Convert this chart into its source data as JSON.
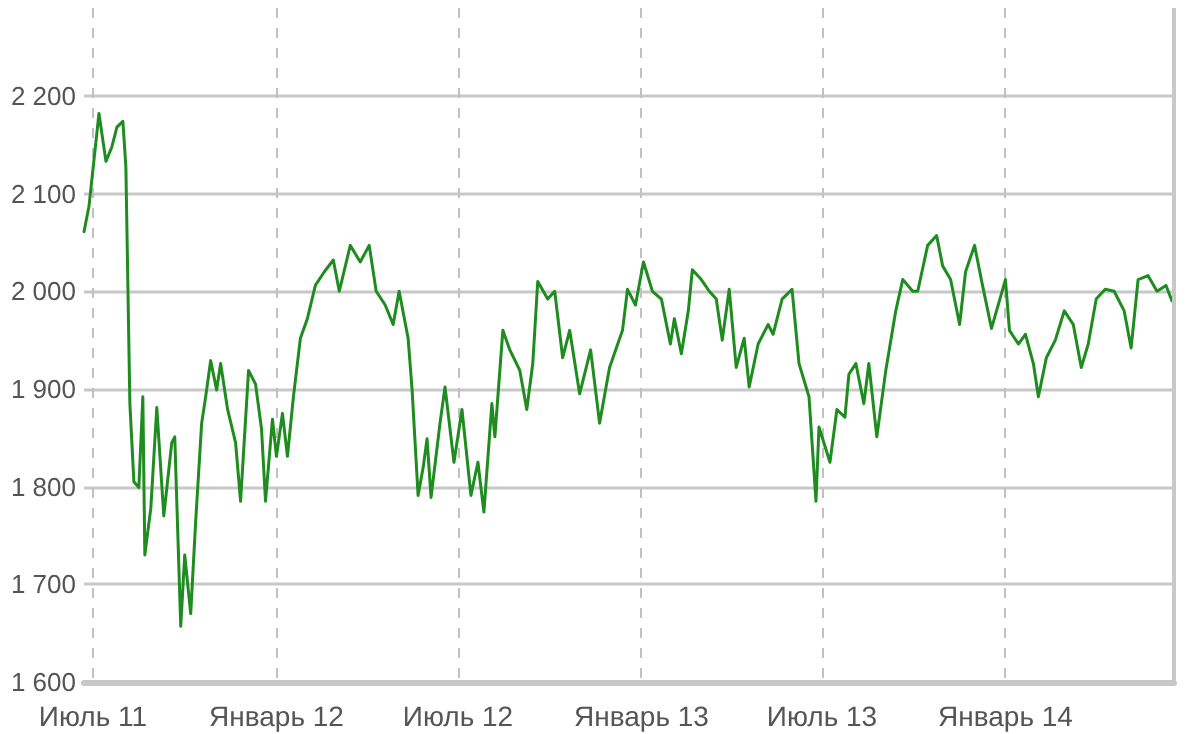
{
  "chart_data": {
    "type": "line",
    "x": [
      "2011-06-22",
      "2011-06-27",
      "2011-07-07",
      "2011-07-14",
      "2011-07-20",
      "2011-07-25",
      "2011-07-31",
      "2011-08-03",
      "2011-08-07",
      "2011-08-11",
      "2011-08-16",
      "2011-08-20",
      "2011-08-22",
      "2011-08-28",
      "2011-09-03",
      "2011-09-10",
      "2011-09-18",
      "2011-09-21",
      "2011-09-27",
      "2011-10-01",
      "2011-10-07",
      "2011-10-12",
      "2011-10-18",
      "2011-10-22",
      "2011-10-27",
      "2011-11-02",
      "2011-11-06",
      "2011-11-13",
      "2011-11-21",
      "2011-11-26",
      "2011-12-04",
      "2011-12-11",
      "2011-12-17",
      "2011-12-21",
      "2011-12-28",
      "2012-01-01",
      "2012-01-07",
      "2012-01-12",
      "2012-01-18",
      "2012-01-25",
      "2012-02-01",
      "2012-02-09",
      "2012-02-18",
      "2012-02-27",
      "2012-03-04",
      "2012-03-15",
      "2012-03-25",
      "2012-04-03",
      "2012-04-10",
      "2012-04-19",
      "2012-04-27",
      "2012-05-03",
      "2012-05-12",
      "2012-05-16",
      "2012-05-22",
      "2012-05-27",
      "2012-05-31",
      "2012-06-04",
      "2012-06-13",
      "2012-06-18",
      "2012-06-27",
      "2012-07-05",
      "2012-07-14",
      "2012-07-21",
      "2012-07-27",
      "2012-08-04",
      "2012-08-07",
      "2012-08-15",
      "2012-08-22",
      "2012-09-01",
      "2012-09-08",
      "2012-09-14",
      "2012-09-19",
      "2012-09-29",
      "2012-10-06",
      "2012-10-14",
      "2012-10-21",
      "2012-10-31",
      "2012-11-11",
      "2012-11-20",
      "2012-11-30",
      "2012-12-13",
      "2012-12-18",
      "2012-12-26",
      "2013-01-03",
      "2013-01-12",
      "2013-01-21",
      "2013-01-30",
      "2013-02-03",
      "2013-02-10",
      "2013-02-17",
      "2013-02-21",
      "2013-03-02",
      "2013-03-10",
      "2013-03-17",
      "2013-03-23",
      "2013-03-30",
      "2013-04-06",
      "2013-04-14",
      "2013-04-19",
      "2013-04-28",
      "2013-05-08",
      "2013-05-13",
      "2013-05-22",
      "2013-06-01",
      "2013-06-08",
      "2013-06-18",
      "2013-06-25",
      "2013-06-28",
      "2013-07-09",
      "2013-07-16",
      "2013-07-24",
      "2013-07-28",
      "2013-08-04",
      "2013-08-12",
      "2013-08-17",
      "2013-08-25",
      "2013-09-03",
      "2013-09-13",
      "2013-09-20",
      "2013-09-30",
      "2013-10-05",
      "2013-10-15",
      "2013-10-24",
      "2013-10-30",
      "2013-11-07",
      "2013-11-16",
      "2013-11-22",
      "2013-12-01",
      "2013-12-09",
      "2013-12-18",
      "2014-01-01",
      "2014-01-05",
      "2014-01-14",
      "2014-01-21",
      "2014-01-29",
      "2014-02-03",
      "2014-02-11",
      "2014-02-20",
      "2014-03-01",
      "2014-03-10",
      "2014-03-18",
      "2014-03-25",
      "2014-04-02",
      "2014-04-11",
      "2014-04-20",
      "2014-04-30",
      "2014-05-07",
      "2014-05-14",
      "2014-05-24",
      "2014-06-02",
      "2014-06-11",
      "2014-06-17"
    ],
    "series": [
      {
        "color": "#1e8c1e",
        "values": [
          2061,
          2087,
          2182,
          2133,
          2148,
          2168,
          2174,
          2127,
          1885,
          1805,
          1799,
          1892,
          1730,
          1778,
          1881,
          1770,
          1845,
          1851,
          1657,
          1730,
          1670,
          1765,
          1865,
          1892,
          1929,
          1899,
          1926,
          1879,
          1845,
          1785,
          1919,
          1905,
          1859,
          1785,
          1869,
          1831,
          1875,
          1831,
          1892,
          1952,
          1972,
          2006,
          2020,
          2032,
          2000,
          2047,
          2030,
          2047,
          2000,
          1986,
          1966,
          2000,
          1952,
          1899,
          1791,
          1819,
          1849,
          1789,
          1865,
          1902,
          1825,
          1879,
          1791,
          1825,
          1774,
          1885,
          1851,
          1960,
          1940,
          1919,
          1879,
          1926,
          2010,
          1992,
          2000,
          1932,
          1960,
          1895,
          1940,
          1865,
          1922,
          1960,
          2002,
          1986,
          2030,
          2000,
          1992,
          1946,
          1972,
          1936,
          1980,
          2022,
          2012,
          2000,
          1992,
          1950,
          2002,
          1922,
          1952,
          1902,
          1946,
          1966,
          1956,
          1992,
          2002,
          1926,
          1892,
          1785,
          1861,
          1825,
          1879,
          1871,
          1915,
          1926,
          1885,
          1926,
          1851,
          1919,
          1980,
          2012,
          2000,
          2000,
          2047,
          2057,
          2026,
          2012,
          1966,
          2020,
          2047,
          2006,
          1962,
          2012,
          1960,
          1946,
          1956,
          1926,
          1892,
          1932,
          1950,
          1980,
          1966,
          1922,
          1946,
          1992,
          2002,
          2000,
          1980,
          1942,
          2012,
          2016,
          2000,
          2006,
          1990
        ]
      }
    ],
    "xlim": [
      "2011-06-22",
      "2014-06-19"
    ],
    "xticks": [
      {
        "value": "2011-07-01",
        "label": "Июль 11"
      },
      {
        "value": "2012-01-01",
        "label": "Январь 12"
      },
      {
        "value": "2012-07-01",
        "label": "Июль 12"
      },
      {
        "value": "2013-01-01",
        "label": "Январь 13"
      },
      {
        "value": "2013-07-01",
        "label": "Июль 13"
      },
      {
        "value": "2014-01-01",
        "label": "Январь 14"
      }
    ],
    "ylim": [
      1600,
      2290
    ],
    "yticks": [
      {
        "value": 1600,
        "label": "1 600"
      },
      {
        "value": 1700,
        "label": "1 700"
      },
      {
        "value": 1800,
        "label": "1 800"
      },
      {
        "value": 1900,
        "label": "1 900"
      },
      {
        "value": 2000,
        "label": "2 000"
      },
      {
        "value": 2100,
        "label": "2 100"
      },
      {
        "value": 2200,
        "label": "2 200"
      }
    ],
    "grid": true,
    "marker": "none",
    "line_style": "solid"
  }
}
